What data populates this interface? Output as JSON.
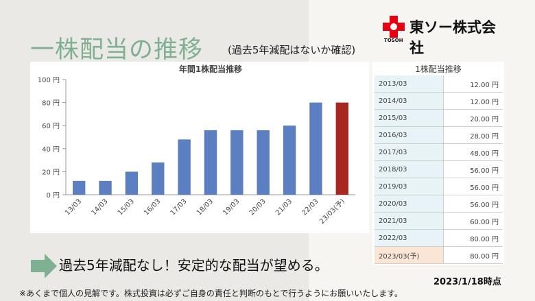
{
  "title": "一株配当の推移",
  "subtitle": "(過去5年減配はないか確認)",
  "logo": {
    "company_name": "東ソー株式会社",
    "sub": "TOSOH"
  },
  "conclusion": "過去5年減配なし！安定的な配当が望める。",
  "date_note": "2023/1/18時点",
  "disclaimer": "※あくまで個人の見解です。株式投資は必ずご自身の責任と判断のもとで行うようにお願いいたします。",
  "colors": {
    "bar": "#5b7fc0",
    "forecast_bar": "#a6281e",
    "title": "#7fb092",
    "arrow": "#7fb092"
  },
  "table": {
    "title": "1株配当推移",
    "rows": [
      {
        "year": "2013/03",
        "value": "12.00 円"
      },
      {
        "year": "2014/03",
        "value": "12.00 円"
      },
      {
        "year": "2015/03",
        "value": "20.00 円"
      },
      {
        "year": "2016/03",
        "value": "28.00 円"
      },
      {
        "year": "2017/03",
        "value": "48.00 円"
      },
      {
        "year": "2018/03",
        "value": "56.00 円"
      },
      {
        "year": "2019/03",
        "value": "56.00 円"
      },
      {
        "year": "2020/03",
        "value": "56.00 円"
      },
      {
        "year": "2021/03",
        "value": "60.00 円"
      },
      {
        "year": "2022/03",
        "value": "80.00 円"
      },
      {
        "year": "2023/03(予)",
        "value": "80.00 円"
      }
    ]
  },
  "chart_data": {
    "type": "bar",
    "title": "年間1株配当推移",
    "categories": [
      "13/03",
      "14/03",
      "15/03",
      "16/03",
      "17/03",
      "18/03",
      "19/03",
      "20/03",
      "21/03",
      "22/03",
      "23/03(予)"
    ],
    "values": [
      12,
      12,
      20,
      28,
      48,
      56,
      56,
      56,
      60,
      80,
      80
    ],
    "forecast_index": 10,
    "ylim": [
      0,
      100
    ],
    "yticks": [
      0,
      20,
      40,
      60,
      80,
      100
    ],
    "ytick_labels": [
      "0 円",
      "20 円",
      "40 円",
      "60 円",
      "80 円",
      "100 円"
    ],
    "grid": false,
    "legend": "none"
  }
}
